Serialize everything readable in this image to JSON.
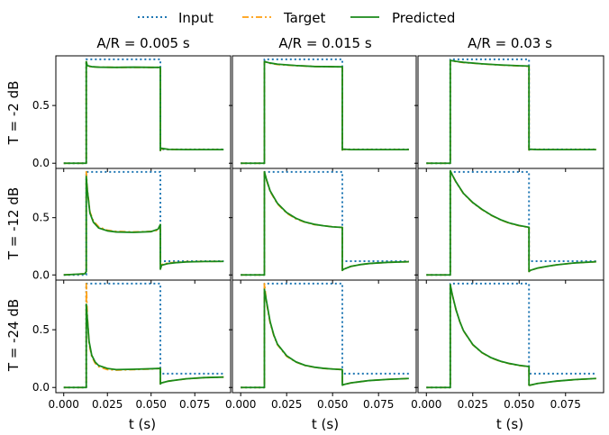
{
  "colors": {
    "input": "#1f77b4",
    "target": "#ff9f0f",
    "predicted": "#1a8a1a",
    "axes": "#000000",
    "background": "#ffffff"
  },
  "legend": {
    "placement": "top-center",
    "items": [
      {
        "label": "Input",
        "style": "dotted",
        "color": "#1f77b4"
      },
      {
        "label": "Target",
        "style": "dash-dot",
        "color": "#ff9f0f"
      },
      {
        "label": "Predicted",
        "style": "solid",
        "color": "#1a8a1a"
      }
    ]
  },
  "chart_data": {
    "type": "line",
    "layout": "grid",
    "rows": 3,
    "cols": 3,
    "xlabel": "t (s)",
    "xlim": [
      -0.0045,
      0.0955
    ],
    "ylim": [
      -0.045,
      0.93
    ],
    "x_ticks": [
      0.0,
      0.025,
      0.05,
      0.075
    ],
    "x_tick_labels": [
      "0.000",
      "0.025",
      "0.050",
      "0.075"
    ],
    "y_ticks": [
      0.0,
      0.5
    ],
    "y_tick_labels": [
      "0.0",
      "0.5"
    ],
    "grid": false,
    "column_titles": [
      "A/R = 0.005 s",
      "A/R = 0.015 s",
      "A/R = 0.03 s"
    ],
    "row_labels": [
      "T = -2 dB",
      "T = -12 dB",
      "T = -24 dB"
    ],
    "series_names": [
      "Input",
      "Target",
      "Predicted"
    ],
    "input_signal": {
      "x": [
        0.0,
        0.0129,
        0.0129,
        0.0553,
        0.0553,
        0.0915
      ],
      "y": [
        0.0,
        0.0,
        0.9,
        0.9,
        0.12,
        0.12
      ]
    },
    "panels": [
      {
        "row": 0,
        "col": 0,
        "attack_release_s": 0.005,
        "threshold_db": -2,
        "target": {
          "x": [
            0.0,
            0.0129,
            0.0129,
            0.0135,
            0.016,
            0.02,
            0.03,
            0.04,
            0.05,
            0.0553,
            0.0553,
            0.0556,
            0.06,
            0.07,
            0.08,
            0.0915
          ],
          "y": [
            0.0,
            0.0,
            0.88,
            0.84,
            0.835,
            0.832,
            0.83,
            0.83,
            0.83,
            0.83,
            0.11,
            0.125,
            0.12,
            0.118,
            0.118,
            0.118
          ]
        },
        "predicted": {
          "x": [
            0.0,
            0.0129,
            0.0129,
            0.0135,
            0.016,
            0.02,
            0.03,
            0.04,
            0.05,
            0.0553,
            0.0553,
            0.0556,
            0.06,
            0.07,
            0.08,
            0.0915
          ],
          "y": [
            0.0,
            0.0,
            0.88,
            0.845,
            0.836,
            0.832,
            0.83,
            0.832,
            0.83,
            0.83,
            0.11,
            0.13,
            0.12,
            0.118,
            0.118,
            0.118
          ]
        }
      },
      {
        "row": 0,
        "col": 1,
        "attack_release_s": 0.015,
        "threshold_db": -2,
        "target": {
          "x": [
            0.0,
            0.0129,
            0.0129,
            0.016,
            0.02,
            0.03,
            0.04,
            0.05,
            0.0553,
            0.0553,
            0.0556,
            0.06,
            0.07,
            0.08,
            0.0915
          ],
          "y": [
            0.0,
            0.0,
            0.88,
            0.865,
            0.855,
            0.845,
            0.838,
            0.835,
            0.834,
            0.115,
            0.12,
            0.118,
            0.118,
            0.118,
            0.118
          ]
        },
        "predicted": {
          "x": [
            0.0,
            0.0129,
            0.0129,
            0.016,
            0.02,
            0.03,
            0.04,
            0.05,
            0.0553,
            0.0553,
            0.0556,
            0.06,
            0.07,
            0.08,
            0.0915
          ],
          "y": [
            0.0,
            0.0,
            0.88,
            0.868,
            0.858,
            0.846,
            0.838,
            0.836,
            0.835,
            0.115,
            0.122,
            0.118,
            0.118,
            0.118,
            0.118
          ]
        }
      },
      {
        "row": 0,
        "col": 2,
        "attack_release_s": 0.03,
        "threshold_db": -2,
        "target": {
          "x": [
            0.0,
            0.0129,
            0.0129,
            0.016,
            0.02,
            0.03,
            0.04,
            0.05,
            0.0553,
            0.0553,
            0.0556,
            0.06,
            0.07,
            0.08,
            0.0915
          ],
          "y": [
            0.0,
            0.0,
            0.89,
            0.88,
            0.872,
            0.86,
            0.85,
            0.843,
            0.84,
            0.115,
            0.12,
            0.118,
            0.118,
            0.118,
            0.118
          ]
        },
        "predicted": {
          "x": [
            0.0,
            0.0129,
            0.0129,
            0.016,
            0.02,
            0.03,
            0.04,
            0.05,
            0.0553,
            0.0553,
            0.0556,
            0.06,
            0.07,
            0.08,
            0.0915
          ],
          "y": [
            0.0,
            0.0,
            0.89,
            0.882,
            0.874,
            0.861,
            0.851,
            0.844,
            0.841,
            0.115,
            0.122,
            0.118,
            0.118,
            0.118,
            0.118
          ]
        }
      },
      {
        "row": 1,
        "col": 0,
        "attack_release_s": 0.005,
        "threshold_db": -12,
        "target": {
          "x": [
            0.0,
            0.012,
            0.0129,
            0.0129,
            0.0135,
            0.015,
            0.017,
            0.02,
            0.025,
            0.03,
            0.04,
            0.05,
            0.054,
            0.0553,
            0.0553,
            0.056,
            0.06,
            0.065,
            0.07,
            0.08,
            0.0915
          ],
          "y": [
            0.0,
            0.01,
            0.03,
            0.9,
            0.75,
            0.55,
            0.47,
            0.42,
            0.39,
            0.38,
            0.375,
            0.38,
            0.39,
            0.41,
            0.06,
            0.09,
            0.105,
            0.11,
            0.115,
            0.118,
            0.118
          ]
        },
        "predicted": {
          "x": [
            0.0,
            0.012,
            0.0129,
            0.0129,
            0.0135,
            0.015,
            0.017,
            0.02,
            0.025,
            0.03,
            0.04,
            0.05,
            0.054,
            0.0553,
            0.0553,
            0.056,
            0.06,
            0.065,
            0.07,
            0.08,
            0.0915
          ],
          "y": [
            0.0,
            0.01,
            0.03,
            0.86,
            0.74,
            0.54,
            0.46,
            0.41,
            0.385,
            0.375,
            0.372,
            0.378,
            0.4,
            0.44,
            0.05,
            0.085,
            0.1,
            0.108,
            0.113,
            0.117,
            0.118
          ]
        }
      },
      {
        "row": 1,
        "col": 1,
        "attack_release_s": 0.015,
        "threshold_db": -12,
        "target": {
          "x": [
            0.0,
            0.0129,
            0.0129,
            0.014,
            0.016,
            0.02,
            0.025,
            0.03,
            0.035,
            0.04,
            0.045,
            0.05,
            0.0553,
            0.0553,
            0.056,
            0.06,
            0.065,
            0.07,
            0.08,
            0.0915
          ],
          "y": [
            0.0,
            0.0,
            0.9,
            0.83,
            0.73,
            0.62,
            0.54,
            0.49,
            0.46,
            0.44,
            0.43,
            0.42,
            0.415,
            0.04,
            0.05,
            0.075,
            0.09,
            0.1,
            0.11,
            0.115
          ]
        },
        "predicted": {
          "x": [
            0.0,
            0.0129,
            0.0129,
            0.014,
            0.016,
            0.02,
            0.025,
            0.03,
            0.035,
            0.04,
            0.045,
            0.05,
            0.0553,
            0.0553,
            0.056,
            0.06,
            0.065,
            0.07,
            0.08,
            0.0915
          ],
          "y": [
            0.0,
            0.0,
            0.9,
            0.835,
            0.735,
            0.625,
            0.545,
            0.495,
            0.462,
            0.442,
            0.43,
            0.42,
            0.415,
            0.04,
            0.05,
            0.075,
            0.09,
            0.1,
            0.11,
            0.115
          ]
        }
      },
      {
        "row": 1,
        "col": 2,
        "attack_release_s": 0.03,
        "threshold_db": -12,
        "target": {
          "x": [
            0.0,
            0.0129,
            0.0129,
            0.014,
            0.016,
            0.02,
            0.025,
            0.03,
            0.035,
            0.04,
            0.045,
            0.05,
            0.0553,
            0.0553,
            0.056,
            0.06,
            0.065,
            0.07,
            0.08,
            0.0915
          ],
          "y": [
            0.0,
            0.0,
            0.91,
            0.87,
            0.81,
            0.71,
            0.63,
            0.57,
            0.52,
            0.48,
            0.45,
            0.43,
            0.415,
            0.03,
            0.04,
            0.06,
            0.075,
            0.088,
            0.105,
            0.115
          ]
        },
        "predicted": {
          "x": [
            0.0,
            0.0129,
            0.0129,
            0.014,
            0.016,
            0.02,
            0.025,
            0.03,
            0.035,
            0.04,
            0.045,
            0.05,
            0.0553,
            0.0553,
            0.056,
            0.06,
            0.065,
            0.07,
            0.08,
            0.0915
          ],
          "y": [
            0.0,
            0.0,
            0.91,
            0.872,
            0.812,
            0.712,
            0.632,
            0.572,
            0.522,
            0.482,
            0.452,
            0.432,
            0.416,
            0.03,
            0.04,
            0.06,
            0.075,
            0.088,
            0.105,
            0.115
          ]
        }
      },
      {
        "row": 2,
        "col": 0,
        "attack_release_s": 0.005,
        "threshold_db": -24,
        "target": {
          "x": [
            0.0,
            0.0129,
            0.0129,
            0.0135,
            0.0145,
            0.016,
            0.018,
            0.02,
            0.025,
            0.03,
            0.04,
            0.05,
            0.0553,
            0.0553,
            0.056,
            0.06,
            0.065,
            0.07,
            0.08,
            0.0915
          ],
          "y": [
            0.0,
            0.0,
            0.9,
            0.62,
            0.38,
            0.27,
            0.21,
            0.18,
            0.155,
            0.15,
            0.155,
            0.16,
            0.165,
            0.03,
            0.04,
            0.055,
            0.065,
            0.075,
            0.085,
            0.09
          ]
        },
        "predicted": {
          "x": [
            0.0,
            0.0129,
            0.0129,
            0.0135,
            0.0145,
            0.016,
            0.018,
            0.02,
            0.025,
            0.03,
            0.04,
            0.05,
            0.0553,
            0.0553,
            0.056,
            0.06,
            0.065,
            0.07,
            0.08,
            0.0915
          ],
          "y": [
            0.0,
            0.0,
            0.72,
            0.6,
            0.4,
            0.28,
            0.22,
            0.19,
            0.165,
            0.155,
            0.158,
            0.162,
            0.165,
            0.03,
            0.04,
            0.055,
            0.065,
            0.075,
            0.085,
            0.09
          ]
        }
      },
      {
        "row": 2,
        "col": 1,
        "attack_release_s": 0.015,
        "threshold_db": -24,
        "target": {
          "x": [
            0.0,
            0.0129,
            0.0129,
            0.014,
            0.016,
            0.018,
            0.02,
            0.025,
            0.03,
            0.035,
            0.04,
            0.045,
            0.05,
            0.0553,
            0.0553,
            0.056,
            0.06,
            0.065,
            0.07,
            0.08,
            0.0915
          ],
          "y": [
            0.0,
            0.0,
            0.9,
            0.74,
            0.56,
            0.45,
            0.37,
            0.27,
            0.22,
            0.19,
            0.175,
            0.165,
            0.16,
            0.155,
            0.02,
            0.025,
            0.04,
            0.05,
            0.06,
            0.07,
            0.078
          ]
        },
        "predicted": {
          "x": [
            0.0,
            0.0129,
            0.0129,
            0.014,
            0.016,
            0.018,
            0.02,
            0.025,
            0.03,
            0.035,
            0.04,
            0.045,
            0.05,
            0.0553,
            0.0553,
            0.056,
            0.06,
            0.065,
            0.07,
            0.08,
            0.0915
          ],
          "y": [
            0.0,
            0.0,
            0.85,
            0.75,
            0.57,
            0.455,
            0.375,
            0.275,
            0.222,
            0.192,
            0.176,
            0.166,
            0.16,
            0.155,
            0.02,
            0.025,
            0.04,
            0.05,
            0.06,
            0.07,
            0.078
          ]
        }
      },
      {
        "row": 2,
        "col": 2,
        "attack_release_s": 0.03,
        "threshold_db": -24,
        "target": {
          "x": [
            0.0,
            0.0129,
            0.0129,
            0.014,
            0.016,
            0.018,
            0.02,
            0.025,
            0.03,
            0.035,
            0.04,
            0.045,
            0.05,
            0.0553,
            0.0553,
            0.056,
            0.06,
            0.065,
            0.07,
            0.08,
            0.0915
          ],
          "y": [
            0.0,
            0.0,
            0.89,
            0.8,
            0.67,
            0.57,
            0.49,
            0.37,
            0.3,
            0.255,
            0.225,
            0.205,
            0.19,
            0.18,
            0.02,
            0.02,
            0.035,
            0.045,
            0.055,
            0.068,
            0.078
          ]
        },
        "predicted": {
          "x": [
            0.0,
            0.0129,
            0.0129,
            0.014,
            0.016,
            0.018,
            0.02,
            0.025,
            0.03,
            0.035,
            0.04,
            0.045,
            0.05,
            0.0553,
            0.0553,
            0.056,
            0.06,
            0.065,
            0.07,
            0.08,
            0.0915
          ],
          "y": [
            0.0,
            0.0,
            0.89,
            0.802,
            0.672,
            0.572,
            0.492,
            0.372,
            0.302,
            0.257,
            0.227,
            0.207,
            0.192,
            0.181,
            0.02,
            0.02,
            0.035,
            0.045,
            0.055,
            0.068,
            0.078
          ]
        }
      }
    ]
  }
}
